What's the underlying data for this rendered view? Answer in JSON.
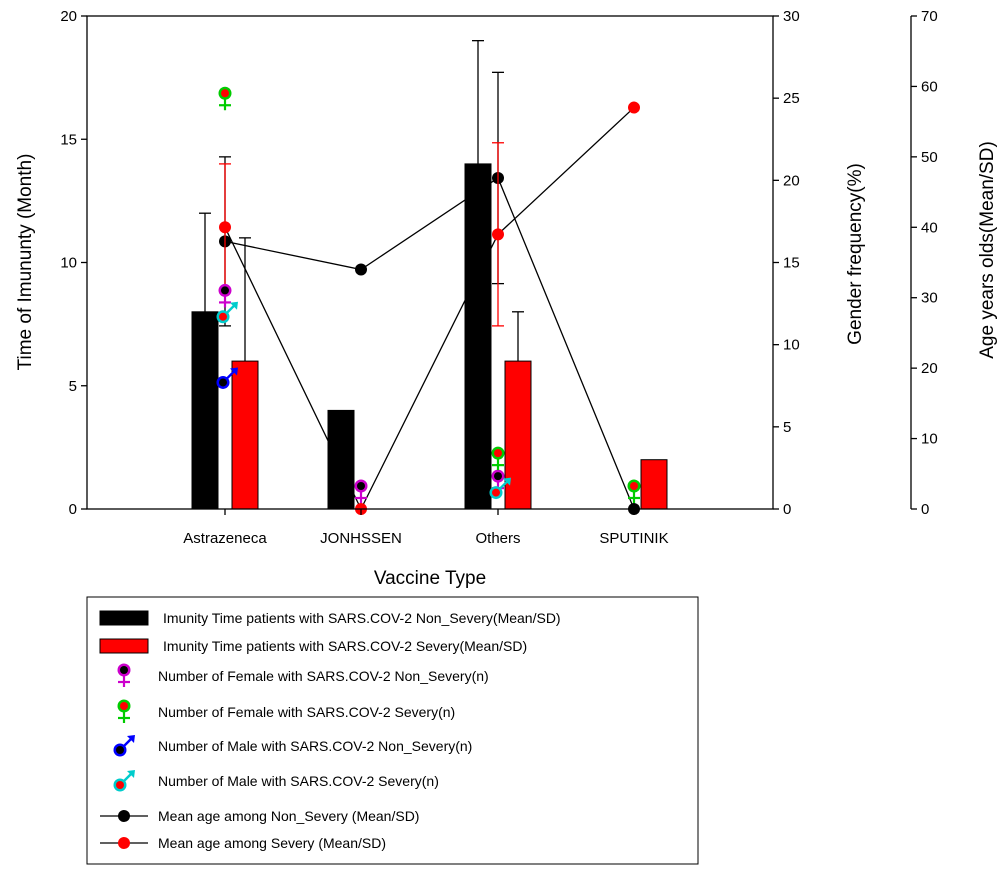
{
  "chart_data": {
    "type": "bar",
    "xlabel": "Vaccine Type",
    "ylabel_left": "Time of Imununty (Month)",
    "ylabel_right1": "Gender frequency(%)",
    "ylabel_right2": "Age years olds(Mean/SD)",
    "categories": [
      "Astrazeneca",
      "JONHSSEN",
      "Others",
      "SPUTINIK"
    ],
    "y_left": {
      "lim": [
        0,
        20
      ],
      "ticks": [
        "0",
        "5",
        "10",
        "15",
        "20"
      ]
    },
    "y_right1": {
      "lim": [
        0,
        30
      ],
      "ticks": [
        "0",
        "5",
        "10",
        "15",
        "20",
        "25",
        "30"
      ]
    },
    "y_right2": {
      "lim": [
        0,
        70
      ],
      "ticks": [
        "0",
        "10",
        "20",
        "30",
        "40",
        "50",
        "60",
        "70"
      ]
    },
    "bars": [
      {
        "name": "Imunity Time patients with SARS.COV-2 Non_Severy(Mean/SD)",
        "color": "#000000",
        "values": [
          8,
          4,
          14,
          0
        ],
        "errors": [
          4,
          null,
          5,
          null
        ]
      },
      {
        "name": "Imunity Time patients with SARS.COV-2 Severy(Mean/SD)",
        "color": "#ff0000",
        "values": [
          6,
          0,
          6,
          2
        ],
        "errors": [
          5,
          null,
          2,
          null
        ]
      }
    ],
    "gender_series": [
      {
        "name": "Number of Female with SARS.COV-2 Non_Severy(n)",
        "symbol": "female",
        "ring": "#cc00cc",
        "dot": "#000000",
        "values": [
          13.3,
          1.4,
          2.0,
          null
        ]
      },
      {
        "name": "Number of Female with SARS.COV-2 Severy(n)",
        "symbol": "female",
        "ring": "#00cc00",
        "dot": "#ff0000",
        "values": [
          25.3,
          null,
          3.4,
          1.4
        ]
      },
      {
        "name": "Number of Male with SARS.COV-2 Non_Severy(n)",
        "symbol": "male",
        "ring": "#0000ff",
        "dot": "#000000",
        "values": [
          7.7,
          null,
          null,
          null
        ]
      },
      {
        "name": "Number of Male with SARS.COV-2 Severy(n)",
        "symbol": "male",
        "ring": "#00cccc",
        "dot": "#ff0000",
        "values": [
          11.7,
          null,
          1.0,
          null
        ]
      }
    ],
    "age_series": [
      {
        "name": "Mean age among Non_Severy (Mean/SD)",
        "color": "#000000",
        "values": [
          38,
          34,
          47,
          0
        ],
        "errors": [
          12,
          null,
          15,
          null
        ]
      },
      {
        "name": "Mean age among Severy (Mean/SD)",
        "color": "#ff0000",
        "values": [
          40,
          0,
          39,
          57
        ],
        "errors": [
          9,
          null,
          13,
          null
        ]
      }
    ]
  }
}
